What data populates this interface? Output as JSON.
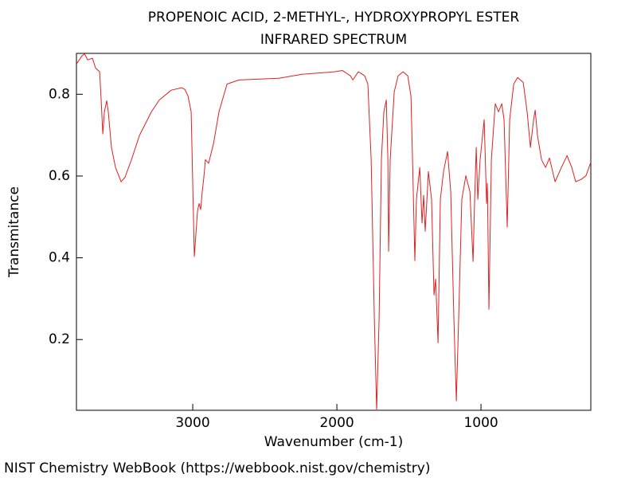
{
  "chart_data": {
    "type": "line",
    "title": "PROPENOIC ACID, 2-METHYL-, HYDROXYPROPYL ESTER",
    "subtitle": "INFRARED SPECTRUM",
    "x_label": "Wavenumber (cm-1)",
    "y_label": "Transmitance",
    "footer": "NIST Chemistry WebBook (https://webbook.nist.gov/chemistry)",
    "color": "#e02020",
    "xlim": [
      3807,
      238
    ],
    "ylim": [
      0.027,
      0.9
    ],
    "xticks": [
      3000,
      2000,
      1000
    ],
    "yticks": [
      0.2,
      0.4,
      0.6,
      0.8
    ],
    "x": [
      3807,
      3768,
      3751,
      3729,
      3696,
      3674,
      3646,
      3635,
      3624,
      3613,
      3597,
      3586,
      3564,
      3536,
      3497,
      3470,
      3425,
      3370,
      3287,
      3232,
      3149,
      3077,
      3055,
      3033,
      3011,
      2989,
      2967,
      2956,
      2945,
      2934,
      2923,
      2912,
      2890,
      2856,
      2818,
      2762,
      2680,
      2403,
      2238,
      2017,
      1961,
      1906,
      1889,
      1851,
      1807,
      1785,
      1762,
      1740,
      1724,
      1707,
      1691,
      1674,
      1657,
      1646,
      1641,
      1630,
      1602,
      1575,
      1541,
      1508,
      1486,
      1475,
      1459,
      1448,
      1425,
      1409,
      1398,
      1387,
      1365,
      1343,
      1326,
      1315,
      1298,
      1282,
      1260,
      1232,
      1210,
      1188,
      1171,
      1155,
      1133,
      1105,
      1077,
      1055,
      1044,
      1033,
      1022,
      1006,
      978,
      961,
      956,
      950,
      945,
      928,
      901,
      878,
      856,
      840,
      818,
      801,
      773,
      746,
      707,
      680,
      657,
      635,
      624,
      608,
      580,
      552,
      525,
      486,
      442,
      403,
      370,
      343,
      304,
      271,
      238
    ],
    "values": [
      0.874,
      0.894,
      0.899,
      0.884,
      0.888,
      0.864,
      0.855,
      0.783,
      0.703,
      0.757,
      0.784,
      0.757,
      0.67,
      0.621,
      0.586,
      0.597,
      0.64,
      0.699,
      0.757,
      0.786,
      0.81,
      0.816,
      0.812,
      0.796,
      0.757,
      0.403,
      0.514,
      0.533,
      0.518,
      0.562,
      0.597,
      0.64,
      0.631,
      0.679,
      0.757,
      0.825,
      0.835,
      0.839,
      0.849,
      0.855,
      0.858,
      0.845,
      0.835,
      0.855,
      0.845,
      0.825,
      0.64,
      0.251,
      0.027,
      0.251,
      0.64,
      0.757,
      0.786,
      0.64,
      0.416,
      0.64,
      0.806,
      0.845,
      0.855,
      0.845,
      0.796,
      0.64,
      0.393,
      0.543,
      0.621,
      0.485,
      0.553,
      0.465,
      0.611,
      0.543,
      0.309,
      0.348,
      0.192,
      0.543,
      0.611,
      0.66,
      0.562,
      0.251,
      0.05,
      0.251,
      0.543,
      0.601,
      0.562,
      0.391,
      0.543,
      0.67,
      0.543,
      0.64,
      0.738,
      0.533,
      0.582,
      0.426,
      0.274,
      0.64,
      0.777,
      0.757,
      0.777,
      0.738,
      0.475,
      0.738,
      0.825,
      0.841,
      0.829,
      0.757,
      0.67,
      0.738,
      0.761,
      0.699,
      0.64,
      0.621,
      0.644,
      0.586,
      0.621,
      0.65,
      0.621,
      0.586,
      0.592,
      0.601,
      0.634
    ]
  }
}
